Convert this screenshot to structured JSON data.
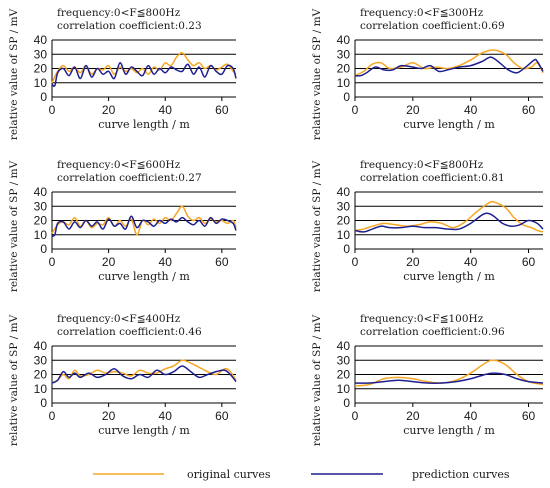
{
  "colors": {
    "original": "#f5a623",
    "prediction": "#1f1f8f",
    "grid": "#000000"
  },
  "legend": {
    "original_label": "original curves",
    "prediction_label": "prediction curves"
  },
  "chart_data": [
    {
      "type": "line",
      "freq_text": "frequency:0<F≦800Hz",
      "corr_text": "correlation coefficient:0.23",
      "xlabel": "curve length  /  m",
      "ylabel": "relative value of SP / mV",
      "xlim": [
        0,
        65
      ],
      "ylim": [
        0,
        40
      ],
      "xticks": [
        0,
        20,
        40,
        60
      ],
      "yticks": [
        0,
        10,
        20,
        30,
        40
      ],
      "grid": "horizontal",
      "series": [
        {
          "name": "original curves",
          "x": [
            0,
            2,
            4,
            6,
            8,
            10,
            12,
            14,
            16,
            18,
            20,
            22,
            24,
            26,
            28,
            30,
            32,
            34,
            36,
            38,
            40,
            42,
            44,
            46,
            48,
            50,
            52,
            54,
            56,
            58,
            60,
            62,
            64,
            65
          ],
          "y": [
            10,
            18,
            22,
            18,
            21,
            17,
            22,
            16,
            20,
            19,
            22,
            16,
            21,
            18,
            20,
            17,
            20,
            16,
            21,
            19,
            24,
            22,
            28,
            31,
            26,
            22,
            24,
            20,
            22,
            19,
            21,
            23,
            18,
            16
          ]
        },
        {
          "name": "prediction curves",
          "x": [
            0,
            1,
            2,
            4,
            6,
            8,
            10,
            12,
            14,
            16,
            18,
            20,
            22,
            24,
            26,
            28,
            30,
            32,
            34,
            36,
            38,
            40,
            42,
            44,
            46,
            48,
            50,
            52,
            54,
            56,
            58,
            60,
            62,
            64,
            65
          ],
          "y": [
            9,
            8,
            17,
            20,
            15,
            21,
            13,
            22,
            14,
            20,
            16,
            18,
            13,
            24,
            16,
            21,
            18,
            15,
            22,
            16,
            20,
            17,
            21,
            19,
            18,
            23,
            16,
            21,
            14,
            22,
            18,
            16,
            22,
            20,
            13
          ]
        }
      ]
    },
    {
      "type": "line",
      "freq_text": "frequency:0<F≦300Hz",
      "corr_text": "correlation coefficient:0.69",
      "xlabel": "curve length  /  m",
      "ylabel": "relative value of SP / mV",
      "xlim": [
        0,
        65
      ],
      "ylim": [
        0,
        40
      ],
      "xticks": [
        0,
        20,
        40,
        60
      ],
      "yticks": [
        0,
        10,
        20,
        30,
        40
      ],
      "grid": "horizontal",
      "series": [
        {
          "name": "original curves",
          "x": [
            0,
            3,
            6,
            9,
            12,
            16,
            20,
            24,
            28,
            32,
            36,
            40,
            44,
            48,
            52,
            55,
            58,
            61,
            63,
            65
          ],
          "y": [
            15,
            18,
            23,
            24,
            20,
            21,
            24,
            20,
            21,
            20,
            22,
            26,
            31,
            33,
            30,
            24,
            20,
            21,
            24,
            17
          ]
        },
        {
          "name": "prediction curves",
          "x": [
            0,
            2,
            4,
            7,
            10,
            13,
            16,
            20,
            23,
            26,
            29,
            32,
            36,
            40,
            44,
            47,
            50,
            53,
            56,
            59,
            62,
            63,
            65
          ],
          "y": [
            15,
            15,
            17,
            21,
            19,
            19,
            22,
            21,
            20,
            22,
            18,
            19,
            21,
            22,
            25,
            28,
            24,
            19,
            17,
            21,
            26,
            25,
            18
          ]
        }
      ]
    },
    {
      "type": "line",
      "freq_text": "frequency:0<F≦600Hz",
      "corr_text": "correlation coefficient:0.27",
      "xlabel": "curve length  /  m",
      "ylabel": "relative value of SP / mV",
      "xlim": [
        0,
        65
      ],
      "ylim": [
        0,
        40
      ],
      "xticks": [
        0,
        20,
        40,
        60
      ],
      "yticks": [
        0,
        10,
        20,
        30,
        40
      ],
      "grid": "horizontal",
      "series": [
        {
          "name": "original curves",
          "x": [
            0,
            2,
            4,
            6,
            8,
            10,
            12,
            14,
            16,
            18,
            20,
            22,
            24,
            26,
            28,
            30,
            32,
            34,
            36,
            38,
            40,
            42,
            44,
            46,
            48,
            50,
            52,
            54,
            56,
            58,
            60,
            62,
            64,
            65
          ],
          "y": [
            11,
            17,
            19,
            17,
            22,
            16,
            20,
            15,
            18,
            17,
            22,
            16,
            20,
            16,
            21,
            10,
            20,
            17,
            21,
            18,
            22,
            20,
            25,
            30,
            23,
            20,
            22,
            18,
            21,
            19,
            20,
            18,
            20,
            15
          ]
        },
        {
          "name": "prediction curves",
          "x": [
            0,
            1,
            2,
            4,
            6,
            8,
            10,
            12,
            14,
            16,
            18,
            20,
            22,
            24,
            26,
            28,
            30,
            32,
            34,
            36,
            38,
            40,
            42,
            44,
            46,
            48,
            50,
            52,
            54,
            56,
            58,
            60,
            62,
            64,
            65
          ],
          "y": [
            9,
            10,
            18,
            19,
            14,
            19,
            15,
            20,
            16,
            19,
            14,
            21,
            16,
            18,
            14,
            23,
            15,
            20,
            19,
            16,
            20,
            18,
            21,
            19,
            22,
            19,
            17,
            20,
            16,
            22,
            18,
            21,
            20,
            18,
            13
          ]
        }
      ]
    },
    {
      "type": "line",
      "freq_text": "frequency:0<F≦800Hz",
      "corr_text": "correlation coefficient:0.81",
      "xlabel": "curve length  /  m",
      "ylabel": "relative value of SP / mV",
      "xlim": [
        0,
        65
      ],
      "ylim": [
        0,
        40
      ],
      "xticks": [
        0,
        20,
        40,
        60
      ],
      "yticks": [
        0,
        10,
        20,
        30,
        40
      ],
      "grid": "horizontal",
      "series": [
        {
          "name": "original curves",
          "x": [
            0,
            3,
            6,
            10,
            14,
            18,
            22,
            26,
            30,
            34,
            38,
            42,
            46,
            48,
            52,
            55,
            58,
            61,
            63,
            65
          ],
          "y": [
            13,
            14,
            16,
            18,
            17,
            16,
            17,
            19,
            18,
            15,
            19,
            26,
            32,
            33,
            29,
            22,
            17,
            15,
            13,
            12
          ]
        },
        {
          "name": "prediction curves",
          "x": [
            0,
            3,
            6,
            9,
            12,
            16,
            20,
            24,
            28,
            32,
            36,
            40,
            44,
            46,
            48,
            51,
            54,
            57,
            60,
            63,
            65
          ],
          "y": [
            13,
            12,
            14,
            16,
            15,
            15,
            16,
            15,
            15,
            14,
            14,
            18,
            24,
            25,
            23,
            18,
            16,
            17,
            20,
            18,
            14
          ]
        }
      ]
    },
    {
      "type": "line",
      "freq_text": "frequency:0<F≦400Hz",
      "corr_text": "correlation coefficient:0.46",
      "xlabel": "curve length  /  m",
      "ylabel": "relative value of SP / mV",
      "xlim": [
        0,
        65
      ],
      "ylim": [
        0,
        40
      ],
      "xticks": [
        0,
        20,
        40,
        60
      ],
      "yticks": [
        0,
        10,
        20,
        30,
        40
      ],
      "grid": "horizontal",
      "series": [
        {
          "name": "original curves",
          "x": [
            0,
            2,
            4,
            6,
            8,
            10,
            13,
            16,
            19,
            22,
            25,
            28,
            31,
            34,
            37,
            40,
            43,
            46,
            49,
            52,
            55,
            58,
            61,
            63,
            65
          ],
          "y": [
            14,
            16,
            20,
            17,
            23,
            19,
            20,
            23,
            21,
            22,
            21,
            19,
            23,
            21,
            21,
            24,
            26,
            30,
            28,
            25,
            22,
            20,
            24,
            22,
            16
          ]
        },
        {
          "name": "prediction curves",
          "x": [
            0,
            2,
            4,
            6,
            8,
            10,
            13,
            16,
            19,
            22,
            25,
            28,
            31,
            34,
            37,
            40,
            43,
            46,
            49,
            52,
            55,
            58,
            61,
            63,
            65
          ],
          "y": [
            14,
            16,
            22,
            18,
            21,
            18,
            21,
            18,
            20,
            24,
            19,
            17,
            20,
            18,
            23,
            20,
            22,
            26,
            22,
            18,
            20,
            22,
            23,
            20,
            15
          ]
        }
      ]
    },
    {
      "type": "line",
      "freq_text": "frequency:0<F≦100Hz",
      "corr_text": "correlation coefficient:0.96",
      "xlabel": "curve length  /  m",
      "ylabel": "relative value of SP / mV",
      "xlim": [
        0,
        65
      ],
      "ylim": [
        0,
        40
      ],
      "xticks": [
        0,
        20,
        40,
        60
      ],
      "yticks": [
        0,
        10,
        20,
        30,
        40
      ],
      "grid": "horizontal",
      "series": [
        {
          "name": "original curves",
          "x": [
            0,
            5,
            10,
            15,
            20,
            25,
            30,
            35,
            40,
            45,
            48,
            52,
            56,
            60,
            65
          ],
          "y": [
            12,
            13,
            17,
            18,
            17,
            15,
            14,
            16,
            21,
            28,
            30,
            27,
            20,
            15,
            13
          ]
        },
        {
          "name": "prediction curves",
          "x": [
            0,
            5,
            10,
            15,
            20,
            25,
            30,
            35,
            40,
            45,
            48,
            52,
            56,
            60,
            65
          ],
          "y": [
            14,
            14,
            15,
            16,
            15,
            14,
            14,
            15,
            17,
            20,
            21,
            20,
            17,
            15,
            14
          ]
        }
      ]
    }
  ]
}
